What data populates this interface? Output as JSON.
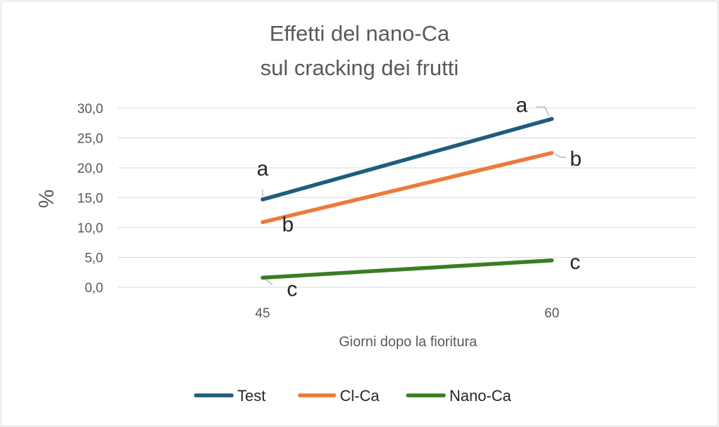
{
  "chart_data": {
    "type": "line",
    "title_lines": [
      "Effetti del nano-Ca",
      "sul cracking dei frutti"
    ],
    "xlabel": "Giorni dopo la fioritura",
    "ylabel": "%",
    "x": [
      "45",
      "60"
    ],
    "ylim": [
      0,
      30
    ],
    "yticks": [
      "0,0",
      "5,0",
      "10,0",
      "15,0",
      "20,0",
      "25,0",
      "30,0"
    ],
    "grid": true,
    "legend_position": "bottom",
    "series": [
      {
        "name": "Test",
        "color": "#1F5C7E",
        "values": [
          14.7,
          28.2
        ],
        "labels": [
          "a",
          "a"
        ]
      },
      {
        "name": "Cl-Ca",
        "color": "#EC7A3C",
        "values": [
          10.9,
          22.5
        ],
        "labels": [
          "b",
          "b"
        ]
      },
      {
        "name": "Nano-Ca",
        "color": "#3A7D22",
        "values": [
          1.6,
          4.5
        ],
        "labels": [
          "c",
          "c"
        ]
      }
    ]
  }
}
